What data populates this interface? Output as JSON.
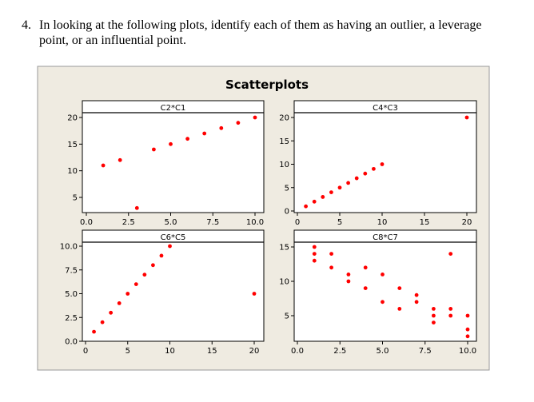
{
  "question": {
    "number": "4.",
    "text": "In looking at the following plots, identify each of them as having an outlier, a leverage point, or an influential point."
  },
  "figure_title": "Scatterplots",
  "colors": {
    "background": "#efebe1",
    "point": "#ff0000",
    "panel": "#ffffff"
  },
  "chart_data": [
    {
      "type": "scatter",
      "title": "C2*C1",
      "xticks": [
        "0.0",
        "2.5",
        "5.0",
        "7.5",
        "10.0"
      ],
      "xtick_values": [
        0,
        2.5,
        5,
        7.5,
        10
      ],
      "yticks": [
        "5",
        "10",
        "15",
        "20"
      ],
      "ytick_values": [
        5,
        10,
        15,
        20
      ],
      "x": [
        1,
        2,
        3,
        4,
        5,
        6,
        7,
        8,
        9,
        10
      ],
      "y": [
        11,
        12,
        3,
        14,
        15,
        16,
        17,
        18,
        19,
        20
      ]
    },
    {
      "type": "scatter",
      "title": "C4*C3",
      "xticks": [
        "0",
        "5",
        "10",
        "15",
        "20"
      ],
      "xtick_values": [
        0,
        5,
        10,
        15,
        20
      ],
      "yticks": [
        "0",
        "5",
        "10",
        "15",
        "20"
      ],
      "ytick_values": [
        0,
        5,
        10,
        15,
        20
      ],
      "x": [
        1,
        2,
        3,
        4,
        5,
        6,
        7,
        8,
        9,
        10,
        20
      ],
      "y": [
        1,
        2,
        3,
        4,
        5,
        6,
        7,
        8,
        9,
        10,
        20
      ]
    },
    {
      "type": "scatter",
      "title": "C6*C5",
      "xticks": [
        "0",
        "5",
        "10",
        "15",
        "20"
      ],
      "xtick_values": [
        0,
        5,
        10,
        15,
        20
      ],
      "yticks": [
        "0.0",
        "2.5",
        "5.0",
        "7.5",
        "10.0"
      ],
      "ytick_values": [
        0,
        2.5,
        5,
        7.5,
        10
      ],
      "x": [
        1,
        2,
        3,
        4,
        5,
        6,
        7,
        8,
        9,
        10,
        20
      ],
      "y": [
        1,
        2,
        3,
        4,
        5,
        6,
        7,
        8,
        9,
        10,
        5
      ]
    },
    {
      "type": "scatter",
      "title": "C8*C7",
      "xticks": [
        "0.0",
        "2.5",
        "5.0",
        "7.5",
        "10.0"
      ],
      "xtick_values": [
        0,
        2.5,
        5,
        7.5,
        10
      ],
      "yticks": [
        "5",
        "10",
        "15"
      ],
      "ytick_values": [
        5,
        10,
        15
      ],
      "x": [
        1,
        1,
        1,
        2,
        2,
        3,
        3,
        4,
        4,
        5,
        5,
        6,
        6,
        7,
        7,
        8,
        8,
        8,
        9,
        9,
        9,
        10,
        10,
        10
      ],
      "y": [
        15,
        14,
        13,
        14,
        12,
        11,
        10,
        12,
        9,
        11,
        7,
        9,
        6,
        8,
        7,
        6,
        5,
        4,
        14,
        6,
        5,
        5,
        3,
        2
      ]
    }
  ]
}
